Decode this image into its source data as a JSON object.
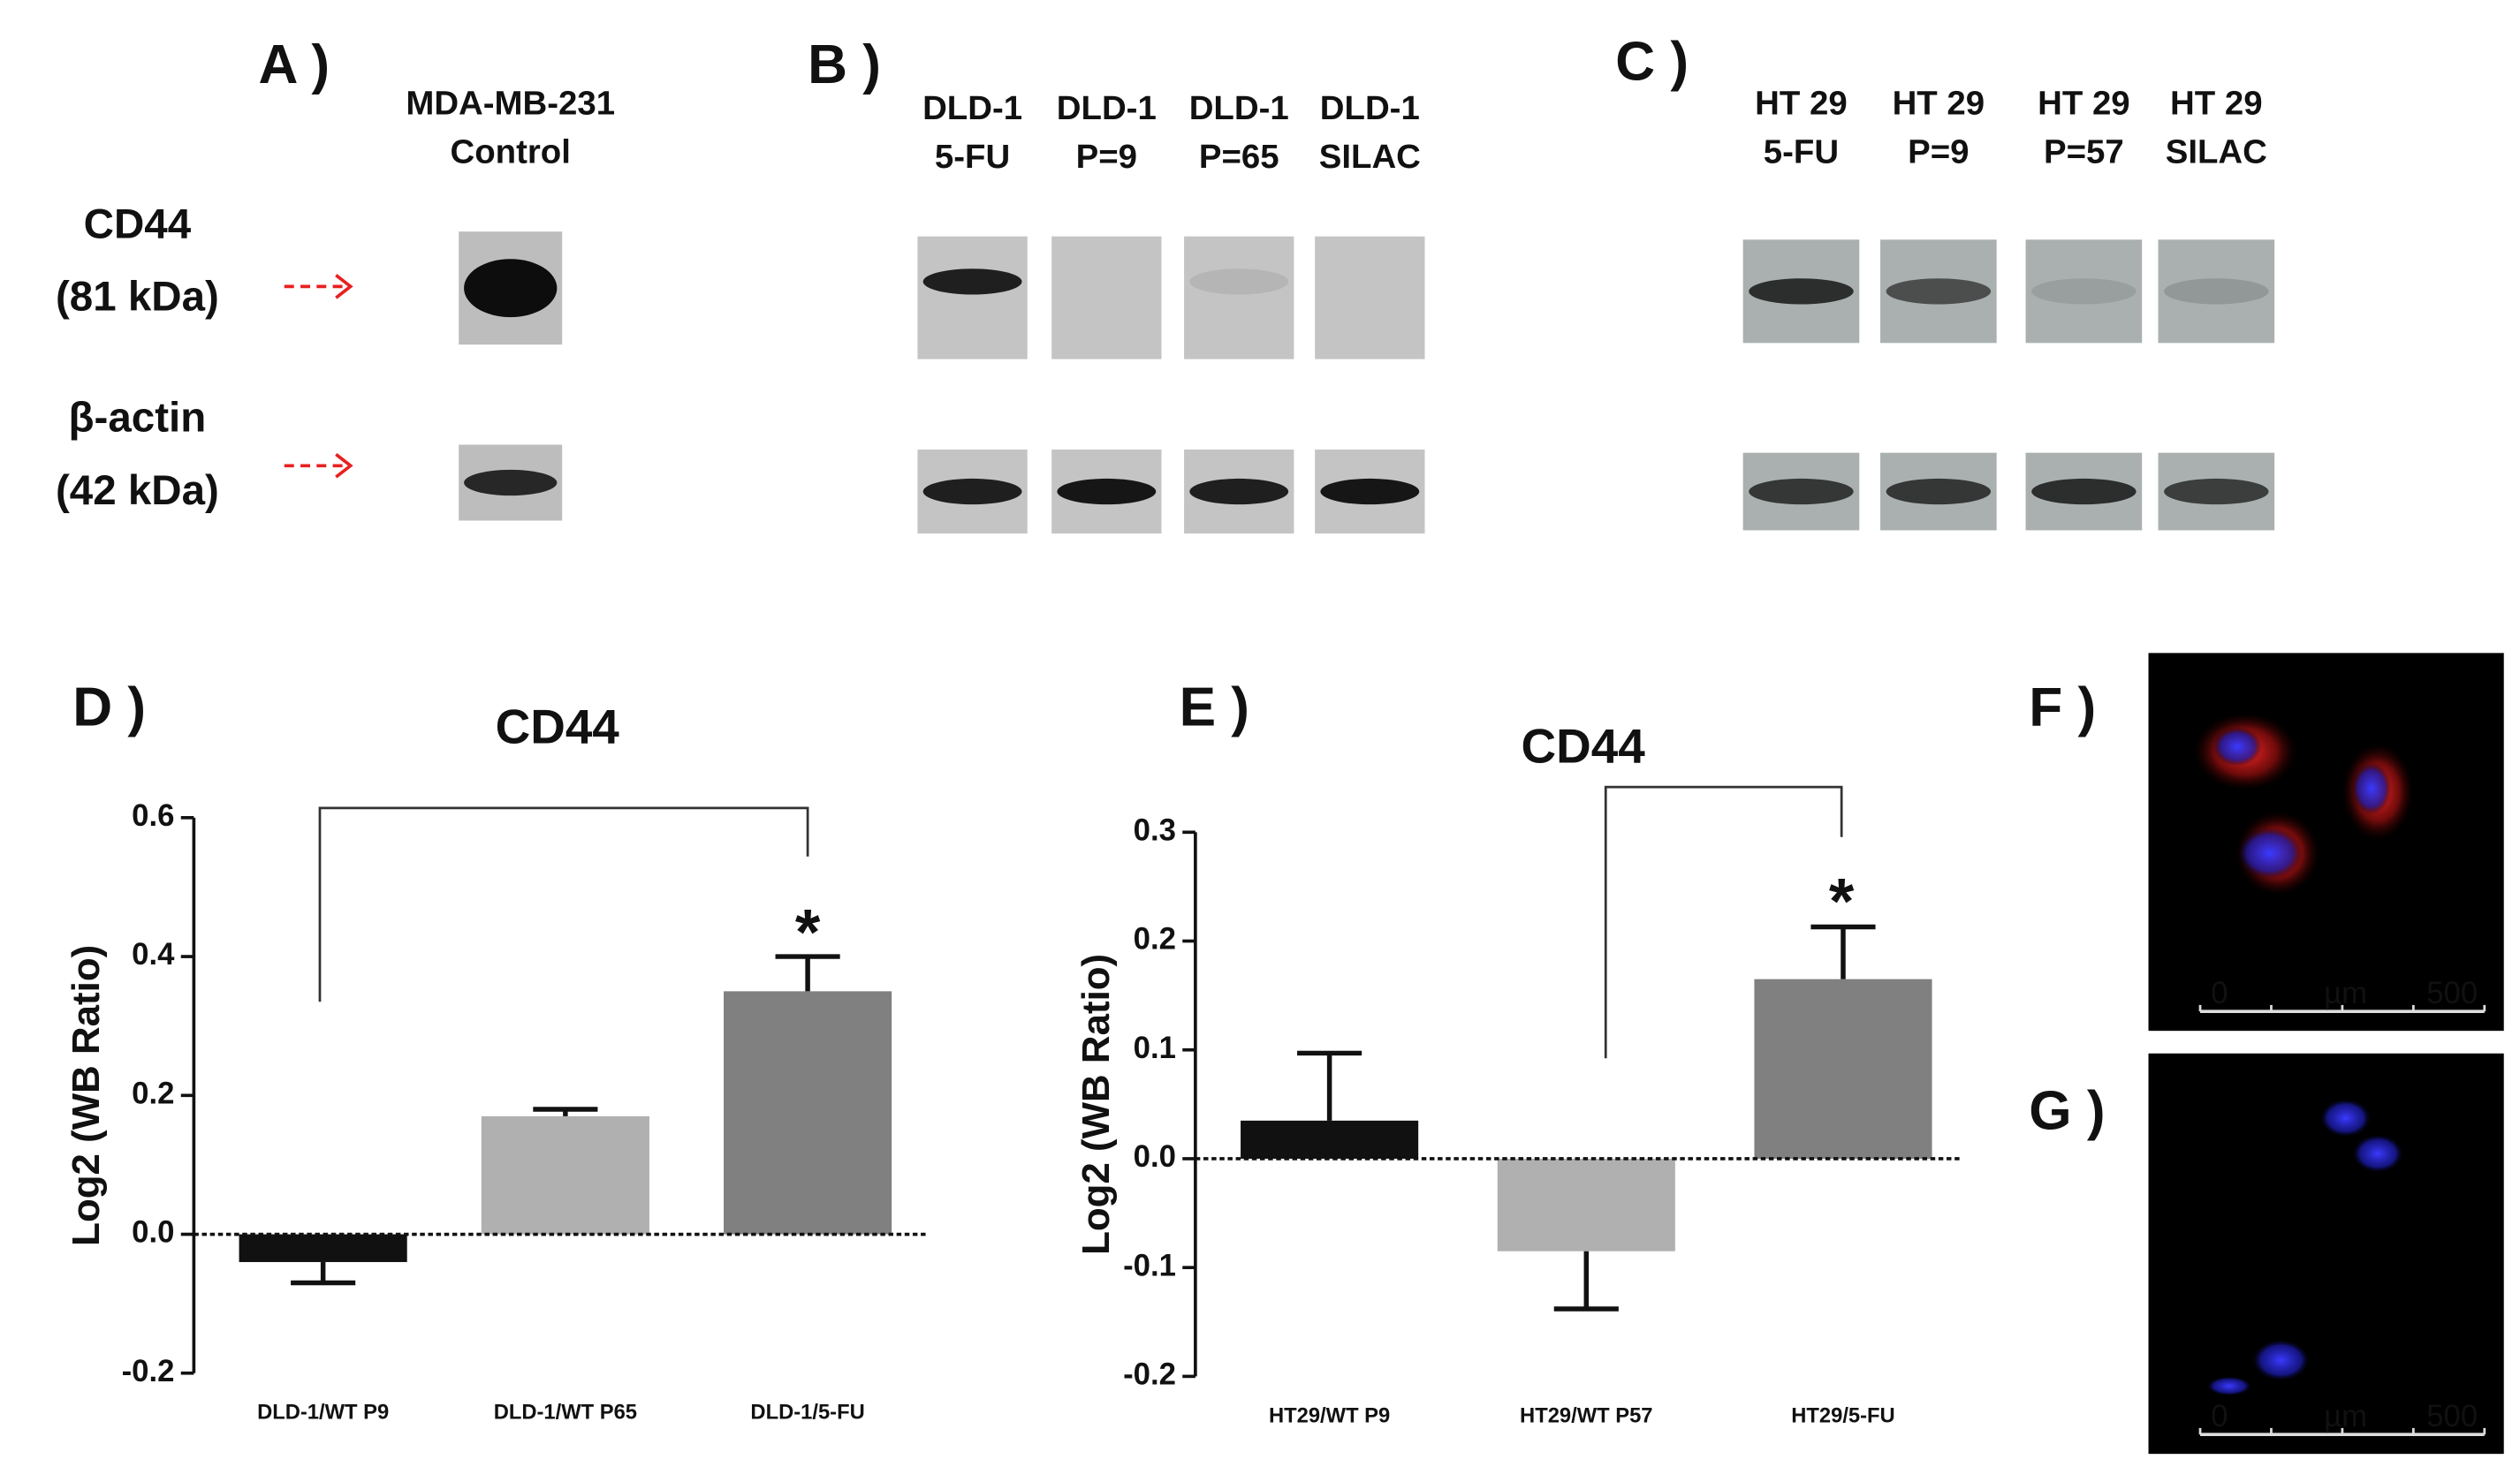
{
  "blots": {
    "panels": [
      {
        "label": "A )",
        "lanes": [
          {
            "line1": "MDA-MB-231",
            "line2": "Control"
          }
        ]
      },
      {
        "label": "B )",
        "lanes": [
          {
            "line1": "DLD-1",
            "line2": "5-FU"
          },
          {
            "line1": "DLD-1",
            "line2": "P=9"
          },
          {
            "line1": "DLD-1",
            "line2": "P=65"
          },
          {
            "line1": "DLD-1",
            "line2": "SILAC"
          }
        ]
      },
      {
        "label": "C )",
        "lanes": [
          {
            "line1": "HT 29",
            "line2": "5-FU"
          },
          {
            "line1": "HT 29",
            "line2": "P=9"
          },
          {
            "line1": "HT 29",
            "line2": "P=57"
          },
          {
            "line1": "HT 29",
            "line2": "SILAC"
          }
        ]
      }
    ],
    "rows": [
      {
        "name": "CD44",
        "weight": "(81 kDa)"
      },
      {
        "name": "β-actin",
        "weight": "(42 kDa)"
      }
    ]
  },
  "chart_data": [
    {
      "type": "bar",
      "panel": "D )",
      "title": "CD44",
      "y_label": "Log2 (WB Ratio)",
      "categories": [
        "DLD-1/WT P9",
        "DLD-1/WT P65",
        "DLD-1/5-FU"
      ],
      "values": [
        -0.04,
        0.17,
        0.35
      ],
      "errors": [
        0.03,
        0.01,
        0.05
      ],
      "colors": [
        "#111111",
        "#b0b0b0",
        "#808080"
      ],
      "ylim": [
        -0.2,
        0.6
      ],
      "yticks": [
        -0.2,
        {
          "value": 0,
          "label": "0.0"
        },
        0.2,
        0.4,
        0.6
      ],
      "annotation": "*"
    },
    {
      "type": "bar",
      "panel": "E )",
      "title": "CD44",
      "y_label": "Log2 (WB Ratio)",
      "categories": [
        "HT29/WT P9",
        "HT29/WT P57",
        "HT29/5-FU"
      ],
      "values": [
        0.035,
        -0.085,
        0.165
      ],
      "errors": [
        0.062,
        0.053,
        0.048
      ],
      "colors": [
        "#111111",
        "#b0b0b0",
        "#808080"
      ],
      "ylim": [
        -0.2,
        0.3
      ],
      "yticks": [
        -0.2,
        -0.1,
        {
          "value": 0,
          "label": "0.0"
        },
        0.1,
        0.2,
        0.3
      ],
      "annotation": "*"
    }
  ],
  "micrographs": [
    {
      "label": "F )",
      "scale_start": "0",
      "scale_unit": "µm",
      "scale_end": "500"
    },
    {
      "label": "G )",
      "scale_start": "0",
      "scale_unit": "µm",
      "scale_end": "500"
    }
  ]
}
